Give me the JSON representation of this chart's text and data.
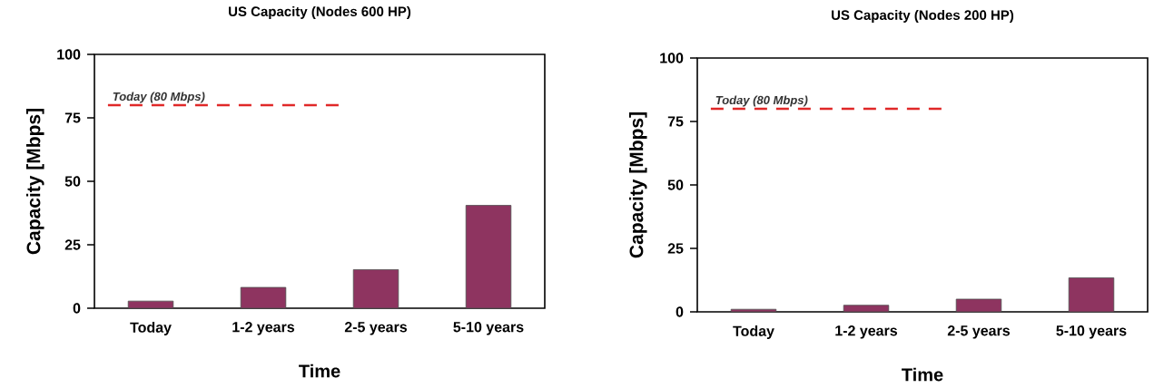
{
  "chart_data": [
    {
      "type": "bar",
      "title": "US Capacity (Nodes 600 HP)",
      "xlabel": "Time",
      "ylabel": "Capacity  [Mbps]",
      "categories": [
        "Today",
        "1-2 years",
        "2-5 years",
        "5-10 years"
      ],
      "values": [
        2.8,
        8.2,
        15.2,
        40.5
      ],
      "color": "#8e3460",
      "ylim": [
        0,
        100
      ],
      "yticks": [
        0,
        25,
        50,
        75,
        100
      ],
      "ref_lines": [
        {
          "axis": "y",
          "value": 80,
          "label": "Today (80 Mbps)",
          "color": "#e02828",
          "line_style": "dashed"
        }
      ]
    },
    {
      "type": "bar",
      "title": "US Capacity (Nodes 200 HP)",
      "xlabel": "Time",
      "ylabel": "Capacity  [Mbps]",
      "categories": [
        "Today",
        "1-2 years",
        "2-5 years",
        "5-10 years"
      ],
      "values": [
        1.0,
        2.6,
        5.0,
        13.4
      ],
      "color": "#8e3460",
      "ylim": [
        0,
        100
      ],
      "yticks": [
        0,
        25,
        50,
        75,
        100
      ],
      "ref_lines": [
        {
          "axis": "y",
          "value": 80,
          "label": "Today (80 Mbps)",
          "color": "#e02828",
          "line_style": "dashed"
        }
      ]
    }
  ]
}
